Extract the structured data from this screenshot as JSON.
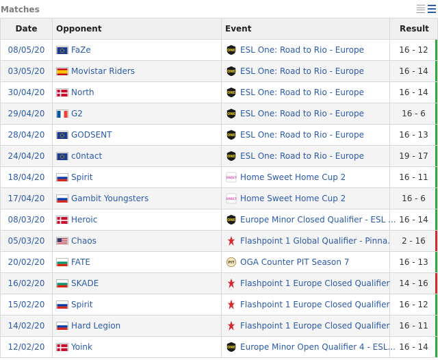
{
  "panel": {
    "title": "Matches"
  },
  "columns": {
    "date": "Date",
    "opponent": "Opponent",
    "event": "Event",
    "result": "Result"
  },
  "colors": {
    "win": "#2eaa3b",
    "loss": "#d12b2b",
    "link": "#2b5aa8"
  },
  "matches": [
    {
      "date": "08/05/20",
      "flag": "eu",
      "opponent": "FaZe",
      "event_icon": "esl-one",
      "event": "ESL One: Road to Rio - Europe",
      "result": "16 - 12",
      "outcome": "win"
    },
    {
      "date": "03/05/20",
      "flag": "es",
      "opponent": "Movistar Riders",
      "event_icon": "esl-one",
      "event": "ESL One: Road to Rio - Europe",
      "result": "16 - 14",
      "outcome": "win"
    },
    {
      "date": "30/04/20",
      "flag": "dk",
      "opponent": "North",
      "event_icon": "esl-one",
      "event": "ESL One: Road to Rio - Europe",
      "result": "16 - 14",
      "outcome": "win"
    },
    {
      "date": "29/04/20",
      "flag": "fr",
      "opponent": "G2",
      "event_icon": "esl-one",
      "event": "ESL One: Road to Rio - Europe",
      "result": "16 - 6",
      "outcome": "win"
    },
    {
      "date": "28/04/20",
      "flag": "eu",
      "opponent": "GODSENT",
      "event_icon": "esl-one",
      "event": "ESL One: Road to Rio - Europe",
      "result": "16 - 13",
      "outcome": "win"
    },
    {
      "date": "24/04/20",
      "flag": "eu",
      "opponent": "c0ntact",
      "event_icon": "esl-one",
      "event": "ESL One: Road to Rio - Europe",
      "result": "19 - 17",
      "outcome": "win"
    },
    {
      "date": "18/04/20",
      "flag": "ru",
      "opponent": "Spirit",
      "event_icon": "sweet-home",
      "event": "Home Sweet Home Cup 2",
      "result": "16 - 11",
      "outcome": "win"
    },
    {
      "date": "17/04/20",
      "flag": "ru",
      "opponent": "Gambit Youngsters",
      "event_icon": "sweet-home",
      "event": "Home Sweet Home Cup 2",
      "result": "16 - 6",
      "outcome": "win"
    },
    {
      "date": "08/03/20",
      "flag": "dk",
      "opponent": "Heroic",
      "event_icon": "esl-one",
      "event": "Europe Minor Closed Qualifier - ESL ...",
      "result": "16 - 14",
      "outcome": "win"
    },
    {
      "date": "05/03/20",
      "flag": "us",
      "opponent": "Chaos",
      "event_icon": "flashpoint",
      "event": "Flashpoint 1 Global Qualifier - Pinna...",
      "result": "2 - 16",
      "outcome": "loss"
    },
    {
      "date": "20/02/20",
      "flag": "bg",
      "opponent": "FATE",
      "event_icon": "oga-pit",
      "event": "OGA Counter PIT Season 7",
      "result": "16 - 13",
      "outcome": "win"
    },
    {
      "date": "16/02/20",
      "flag": "bg",
      "opponent": "SKADE",
      "event_icon": "flashpoint",
      "event": "Flashpoint 1 Europe Closed Qualifier",
      "result": "14 - 16",
      "outcome": "loss"
    },
    {
      "date": "15/02/20",
      "flag": "ru",
      "opponent": "Spirit",
      "event_icon": "flashpoint",
      "event": "Flashpoint 1 Europe Closed Qualifier",
      "result": "16 - 12",
      "outcome": "win"
    },
    {
      "date": "14/02/20",
      "flag": "ru",
      "opponent": "Hard Legion",
      "event_icon": "flashpoint",
      "event": "Flashpoint 1 Europe Closed Qualifier",
      "result": "16 - 11",
      "outcome": "win"
    },
    {
      "date": "12/02/20",
      "flag": "dk",
      "opponent": "Yoink",
      "event_icon": "esl-one",
      "event": "Europe Minor Open Qualifier 4 - ESL...",
      "result": "16 - 14",
      "outcome": "win"
    }
  ]
}
